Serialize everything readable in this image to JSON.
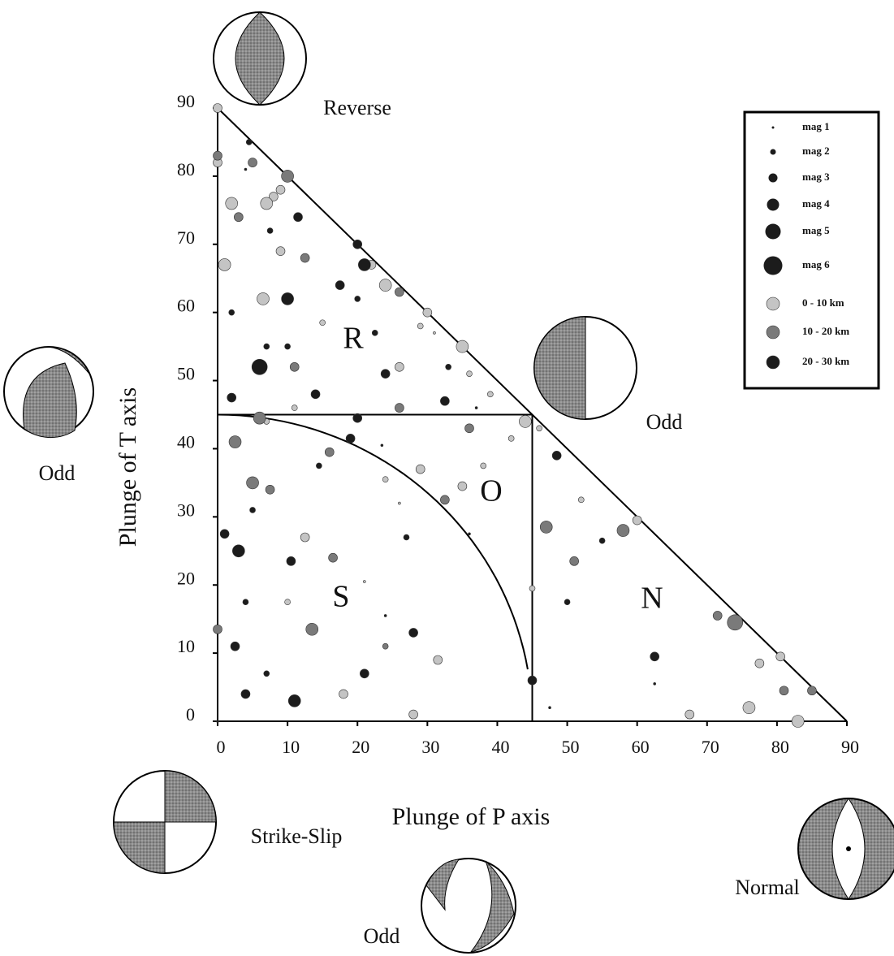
{
  "chart_data": {
    "type": "scatter",
    "xlabel": "Plunge of P axis",
    "ylabel": "Plunge of T axis",
    "xlim": [
      0,
      90
    ],
    "ylim": [
      0,
      90
    ],
    "xticks": [
      0,
      10,
      20,
      30,
      40,
      50,
      60,
      70,
      80,
      90
    ],
    "yticks": [
      0,
      10,
      20,
      30,
      40,
      50,
      60,
      70,
      80,
      90
    ],
    "size_legend": [
      {
        "value": 1,
        "label": "mag 1"
      },
      {
        "value": 2,
        "label": "mag 2"
      },
      {
        "value": 3,
        "label": "mag 3"
      },
      {
        "value": 4,
        "label": "mag 4"
      },
      {
        "value": 5,
        "label": "mag 5"
      },
      {
        "value": 6,
        "label": "mag 6"
      }
    ],
    "annotations": [
      "Reverse",
      "Odd",
      "Odd",
      "Strike-Slip",
      "Odd",
      "Normal",
      "R",
      "O",
      "S",
      "N"
    ],
    "series": [
      {
        "name": "0 - 10 km",
        "color": "#c4c4c4",
        "x": [
          0,
          0,
          9,
          8,
          2,
          7,
          9,
          22,
          1,
          24,
          6.5,
          30,
          29,
          31,
          15,
          35,
          26,
          36,
          39,
          11,
          7,
          44,
          46,
          42,
          38,
          29,
          24,
          35,
          26,
          52,
          60,
          12.5,
          21,
          45,
          10,
          31.5,
          77.5,
          80.5,
          18,
          76,
          67.5,
          28,
          83
        ],
        "y": [
          90,
          82,
          78,
          77,
          76,
          76,
          69,
          67,
          67,
          64,
          62,
          60,
          58,
          57,
          58.5,
          55,
          52,
          51,
          48,
          46,
          44,
          44,
          43,
          41.5,
          37.5,
          37,
          35.5,
          34.5,
          32,
          32.5,
          29.5,
          27,
          20.5,
          19.5,
          17.5,
          9,
          8.5,
          9.5,
          4,
          2,
          1,
          1,
          0
        ],
        "size": [
          3,
          3,
          3,
          3,
          4,
          4,
          3,
          3,
          4,
          4,
          4,
          3,
          2,
          1,
          2,
          4,
          3,
          2,
          2,
          2,
          2,
          4,
          2,
          2,
          2,
          3,
          2,
          3,
          1,
          2,
          3,
          3,
          1,
          2,
          2,
          3,
          3,
          3,
          3,
          4,
          3,
          3,
          4
        ]
      },
      {
        "name": "10 - 20 km",
        "color": "#7a7a7a",
        "x": [
          0,
          5,
          10,
          3,
          12.5,
          26,
          11,
          26,
          6,
          36,
          2.5,
          16,
          5,
          7.5,
          32.5,
          47,
          58,
          16.5,
          51,
          71.5,
          74,
          0,
          13.5,
          24,
          85,
          81
        ],
        "y": [
          83,
          82,
          80,
          74,
          68,
          63,
          52,
          46,
          44.5,
          43,
          41,
          39.5,
          35,
          34,
          32.5,
          28.5,
          28,
          24,
          23.5,
          15.5,
          14.5,
          13.5,
          13.5,
          11,
          4.5,
          4.5
        ],
        "size": [
          3,
          3,
          4,
          3,
          3,
          3,
          3,
          3,
          4,
          3,
          4,
          3,
          4,
          3,
          3,
          4,
          4,
          3,
          3,
          3,
          5,
          3,
          4,
          2,
          3,
          3
        ]
      },
      {
        "name": "20 - 30 km",
        "color": "#1c1c1c",
        "x": [
          4.5,
          4,
          11.5,
          7.5,
          20,
          21,
          17.5,
          20,
          10,
          2,
          22.5,
          33,
          7,
          10,
          6,
          24,
          14,
          32.5,
          2,
          37,
          20,
          19,
          23.5,
          48.5,
          14.5,
          5,
          1,
          27,
          36,
          55,
          3,
          10.5,
          4,
          50,
          24,
          28,
          2.5,
          62.5,
          21,
          7,
          45,
          62.5,
          4,
          11,
          47.5,
          0
        ],
        "y": [
          85,
          81,
          74,
          72,
          70,
          67,
          64,
          62,
          62,
          60,
          57,
          52,
          55,
          55,
          52,
          51,
          48,
          47,
          47.5,
          46,
          44.5,
          41.5,
          40.5,
          39,
          37.5,
          31,
          27.5,
          27,
          27.5,
          26.5,
          25,
          23.5,
          17.5,
          17.5,
          15.5,
          13,
          11,
          9.5,
          7,
          7,
          6,
          5.5,
          4,
          3,
          2,
          0
        ],
        "size": [
          2,
          1,
          3,
          2,
          3,
          4,
          3,
          2,
          4,
          2,
          2,
          2,
          2,
          2,
          5,
          3,
          3,
          3,
          3,
          1,
          3,
          3,
          1,
          3,
          2,
          2,
          3,
          2,
          1,
          2,
          4,
          3,
          2,
          2,
          1,
          3,
          3,
          3,
          3,
          2,
          3,
          1,
          3,
          4,
          1,
          1
        ]
      }
    ]
  }
}
